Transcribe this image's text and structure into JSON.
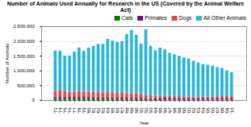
{
  "chart_data": {
    "type": "bar",
    "title": "Number of Animals Used Annually for Research in the US (Covered by the Animal Welfare Act)",
    "xlabel": "Year",
    "ylabel": "Number of Animals",
    "categories": [
      "'73",
      "'74",
      "'75",
      "'76",
      "'77",
      "'78",
      "'79",
      "'80",
      "'81",
      "'82",
      "'83",
      "'84",
      "'85",
      "'86",
      "'87",
      "'88",
      "'89",
      "'90",
      "'91",
      "'92",
      "'93",
      "'94",
      "'95",
      "'96",
      "'97",
      "'98",
      "'99",
      "'00",
      "'01",
      "'02",
      "'03",
      "'04",
      "'05",
      "'06",
      "'07",
      "'08",
      "'09",
      "'10"
    ],
    "series": [
      {
        "name": "Cats",
        "color": "#008000",
        "values": [
          65000,
          68000,
          62000,
          58000,
          55000,
          60000,
          58000,
          55000,
          52000,
          50000,
          48000,
          52000,
          48000,
          45000,
          42000,
          40000,
          42000,
          40000,
          35000,
          33000,
          30000,
          28000,
          26000,
          24000,
          22000,
          22000,
          20000,
          19000,
          18000,
          17000,
          16000,
          15000,
          15000,
          14000,
          13000,
          12000,
          11000,
          10000
        ]
      },
      {
        "name": "Primates",
        "color": "#800080",
        "values": [
          55000,
          55000,
          52000,
          50000,
          48000,
          50000,
          50000,
          48000,
          48000,
          46000,
          45000,
          47000,
          46000,
          45000,
          44000,
          43000,
          45000,
          43000,
          42000,
          40000,
          38000,
          37000,
          36000,
          54000,
          52000,
          50000,
          49000,
          49000,
          50000,
          49000,
          48000,
          50000,
          52000,
          54000,
          57000,
          58000,
          60000,
          62000
        ]
      },
      {
        "name": "Dogs",
        "color": "#EE4444",
        "values": [
          195000,
          200000,
          185000,
          175000,
          180000,
          185000,
          180000,
          180000,
          175000,
          170000,
          165000,
          170000,
          165000,
          160000,
          155000,
          150000,
          150000,
          145000,
          135000,
          105000,
          90000,
          85000,
          80000,
          75000,
          70000,
          68000,
          65000,
          60000,
          58000,
          56000,
          55000,
          55000,
          58000,
          58000,
          60000,
          63000,
          65000,
          67000
        ]
      },
      {
        "name": "All Other Animals",
        "color": "#29B5D8",
        "values": [
          1355000,
          1347000,
          1201000,
          1217000,
          1357000,
          1485000,
          1377000,
          1490000,
          1555000,
          1634000,
          1642000,
          1803000,
          1752000,
          1720000,
          1755000,
          2000000,
          2135000,
          1977000,
          1700000,
          2215000,
          1680000,
          1530000,
          1630000,
          1560000,
          1450000,
          1410000,
          1360000,
          1310000,
          1280000,
          1210000,
          1150000,
          1100000,
          1070000,
          1040000,
          985000,
          950000,
          870000,
          800000
        ]
      }
    ],
    "stacked": true,
    "ylim": [
      0,
      2500000
    ],
    "yticks": [
      0,
      {
        "value": 500000,
        "label": "500,000"
      },
      {
        "value": 1000000,
        "label": "1,000,000"
      },
      {
        "value": 1500000,
        "label": "1,500,000"
      },
      {
        "value": 2000000,
        "label": "2,000,000"
      },
      {
        "value": 2500000,
        "label": "2,500,000"
      }
    ],
    "grid": true,
    "legend": "upper right"
  }
}
